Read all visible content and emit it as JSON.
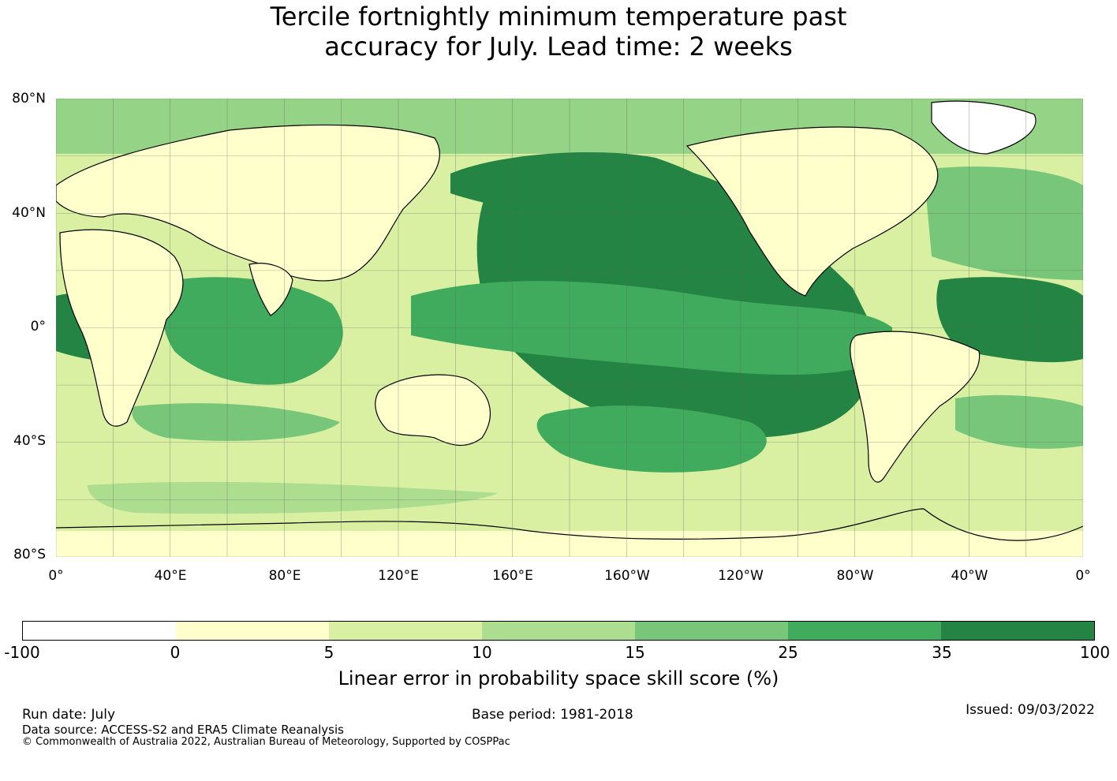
{
  "title_line1": "Tercile fortnightly minimum temperature past",
  "title_line2": "accuracy for July. Lead time: 2 weeks",
  "map": {
    "projection": "equirectangular, centered on 180°",
    "lat_labels": [
      "80°N",
      "40°N",
      "0°",
      "40°S",
      "80°S"
    ],
    "lon_labels": [
      "0°",
      "40°E",
      "80°E",
      "120°E",
      "160°E",
      "160°W",
      "120°W",
      "80°W",
      "40°W",
      "0°"
    ],
    "lon_range": [
      0,
      360
    ],
    "lat_range": [
      -80,
      80
    ]
  },
  "colorbar": {
    "ticks": [
      "-100",
      "0",
      "5",
      "10",
      "15",
      "25",
      "35",
      "100"
    ],
    "colors": [
      "#ffffff",
      "#ffffcc",
      "#d9f0a3",
      "#addd8e",
      "#78c679",
      "#41ab5d",
      "#238443"
    ],
    "label": "Linear error in probability space skill score (%)"
  },
  "footer": {
    "run_date": "Run date: July",
    "base_period": "Base period: 1981-2018",
    "issued": "Issued: 09/03/2022",
    "data_source": "Data source: ACCESS-S2 and ERA5 Climate Reanalysis",
    "copyright": "© Commonwealth of Australia 2022, Australian Bureau of Meteorology, Supported by COSPPac"
  }
}
